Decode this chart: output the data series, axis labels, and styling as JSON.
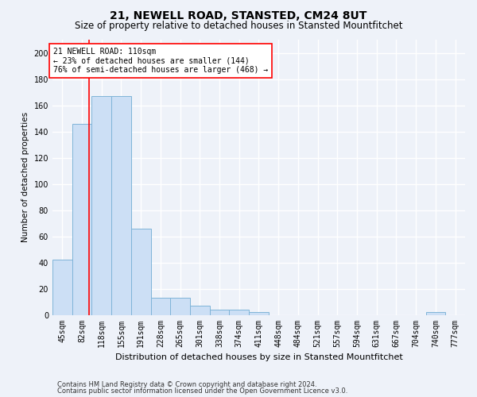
{
  "title": "21, NEWELL ROAD, STANSTED, CM24 8UT",
  "subtitle": "Size of property relative to detached houses in Stansted Mountfitchet",
  "xlabel": "Distribution of detached houses by size in Stansted Mountfitchet",
  "ylabel": "Number of detached properties",
  "footnote1": "Contains HM Land Registry data © Crown copyright and database right 2024.",
  "footnote2": "Contains public sector information licensed under the Open Government Licence v3.0.",
  "categories": [
    "45sqm",
    "82sqm",
    "118sqm",
    "155sqm",
    "191sqm",
    "228sqm",
    "265sqm",
    "301sqm",
    "338sqm",
    "374sqm",
    "411sqm",
    "448sqm",
    "484sqm",
    "521sqm",
    "557sqm",
    "594sqm",
    "631sqm",
    "667sqm",
    "704sqm",
    "740sqm",
    "777sqm"
  ],
  "values": [
    42,
    146,
    167,
    167,
    66,
    13,
    13,
    7,
    4,
    4,
    2,
    0,
    0,
    0,
    0,
    0,
    0,
    0,
    0,
    2,
    0
  ],
  "bar_color": "#ccdff5",
  "bar_edge_color": "#7fb4d8",
  "annotation_text": "21 NEWELL ROAD: 110sqm\n← 23% of detached houses are smaller (144)\n76% of semi-detached houses are larger (468) →",
  "annotation_box_color": "white",
  "annotation_box_edge_color": "red",
  "vline_color": "red",
  "vline_x": 1.35,
  "ylim": [
    0,
    210
  ],
  "yticks": [
    0,
    20,
    40,
    60,
    80,
    100,
    120,
    140,
    160,
    180,
    200
  ],
  "bg_color": "#eef2f9",
  "grid_color": "white",
  "title_fontsize": 10,
  "subtitle_fontsize": 8.5,
  "ylabel_fontsize": 7.5,
  "xlabel_fontsize": 8,
  "tick_fontsize": 7,
  "annotation_fontsize": 7,
  "footnote_fontsize": 6
}
